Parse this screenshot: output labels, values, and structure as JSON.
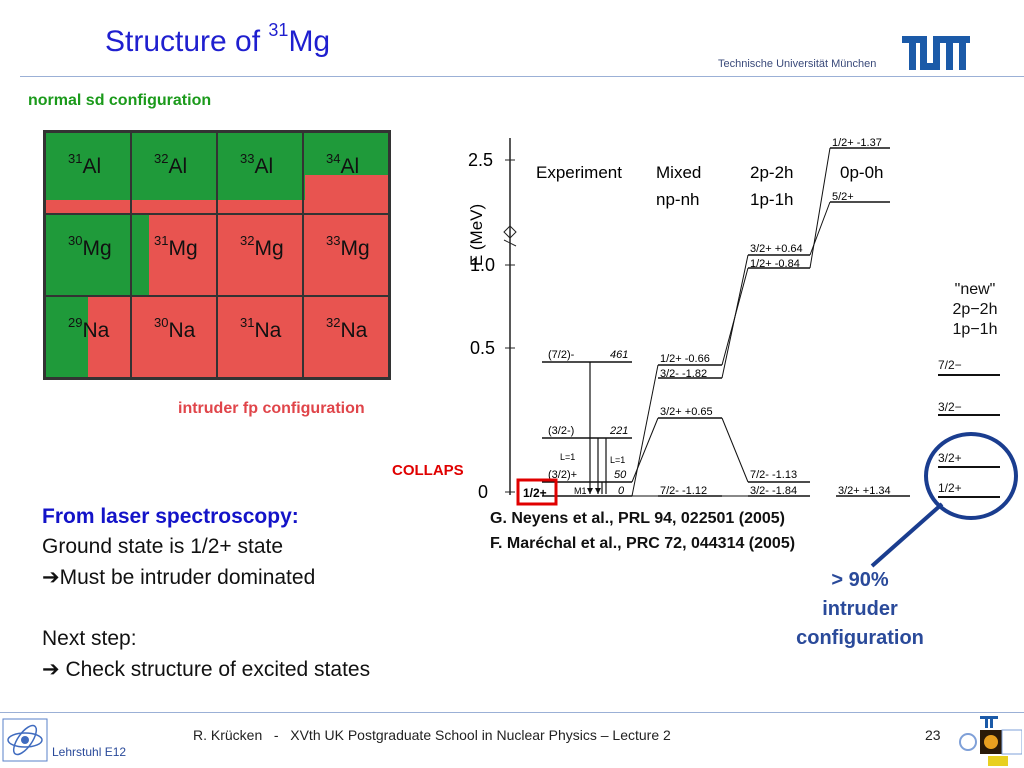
{
  "header": {
    "title_text": "Structure of ",
    "title_sup": "31",
    "title_element": "Mg",
    "institution": "Technische Universität München"
  },
  "nuclear_chart": {
    "normal_label": "normal sd configuration",
    "intruder_label": "intruder fp configuration",
    "colors": {
      "normal": "#1f9a3a",
      "intruder": "#e85450"
    },
    "rows": [
      [
        {
          "mass": "31",
          "symbol": "Al"
        },
        {
          "mass": "32",
          "symbol": "Al"
        },
        {
          "mass": "33",
          "symbol": "Al"
        },
        {
          "mass": "34",
          "symbol": "Al"
        }
      ],
      [
        {
          "mass": "30",
          "symbol": "Mg"
        },
        {
          "mass": "31",
          "symbol": "Mg"
        },
        {
          "mass": "32",
          "symbol": "Mg"
        },
        {
          "mass": "33",
          "symbol": "Mg"
        }
      ],
      [
        {
          "mass": "29",
          "symbol": "Na"
        },
        {
          "mass": "30",
          "symbol": "Na"
        },
        {
          "mass": "31",
          "symbol": "Na"
        },
        {
          "mass": "32",
          "symbol": "Na"
        }
      ]
    ]
  },
  "level_scheme": {
    "axis_label": "E (MeV)",
    "ticks": [
      "2.5",
      "1.0",
      "0.5",
      "0"
    ],
    "columns": {
      "experiment": "Experiment",
      "mixed": [
        "Mixed",
        "np-nh"
      ],
      "mix_config": [
        "2p-2h",
        "1p-1h"
      ],
      "pure": "0p-0h"
    },
    "experiment_levels": [
      {
        "spin": "(7/2)-",
        "energy": "461"
      },
      {
        "spin": "(3/2-)",
        "energy": "221"
      },
      {
        "spin": "(3/2)+",
        "energy": "50"
      },
      {
        "spin": "1/2+",
        "energy": "0"
      }
    ],
    "transitions": [
      "L=1",
      "L=1",
      "M1"
    ],
    "theory_levels": {
      "mixed": [
        "1/2+ -0.66",
        "3/2- -1.82",
        "3/2+ +0.65",
        "7/2- -1.12"
      ],
      "mix2": [
        "3/2+ +0.64",
        "1/2+ -0.84",
        "7/2- -1.13",
        "3/2- -1.84"
      ],
      "pure": [
        "1/2+ -1.37",
        "5/2+",
        "3/2+ +1.34"
      ]
    },
    "new_column": {
      "title": [
        "\"new\"",
        "2p−2h",
        "1p−1h"
      ],
      "levels": [
        "7/2−",
        "3/2−",
        "3/2+",
        "1/2+"
      ]
    },
    "collaps": "COLLAPS",
    "references": [
      "G. Neyens et al., PRL 94, 022501 (2005)",
      "F. Maréchal et al., PRC 72, 044314 (2005)"
    ],
    "callout": [
      "> 90%",
      "intruder",
      "configuration"
    ]
  },
  "body": {
    "heading": "From laser spectroscopy:",
    "line1": "Ground state is 1/2+ state",
    "line2": "Must be intruder dominated",
    "line3": "Next step:",
    "line4": " Check structure of excited states",
    "arrow": "➔"
  },
  "footer": {
    "text": "R. Krücken   -   XVth UK Postgraduate School in Nuclear Physics – Lecture 2",
    "page": "23",
    "lehrstuhl": "Lehrstuhl E12"
  }
}
